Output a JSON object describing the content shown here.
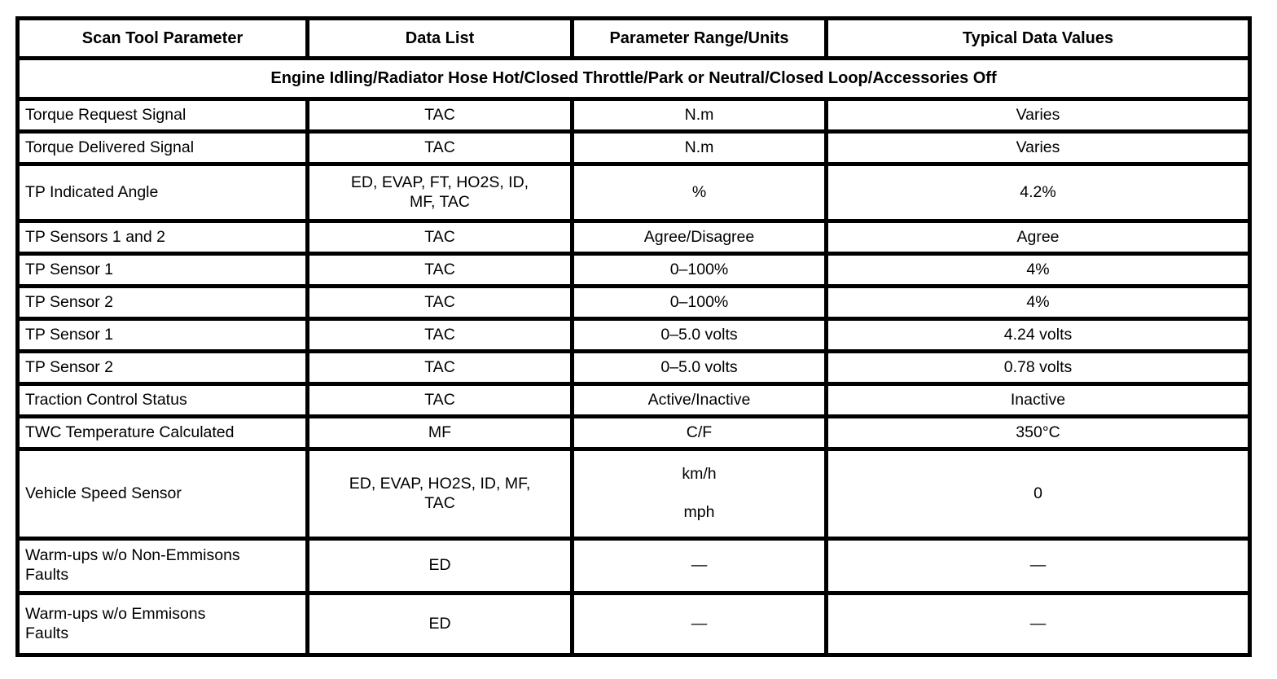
{
  "table": {
    "border_color": "#000000",
    "background_color": "#ffffff",
    "headers": [
      "Scan Tool Parameter",
      "Data List",
      "Parameter Range/Units",
      "Typical Data Values"
    ],
    "banner": "Engine Idling/Radiator Hose Hot/Closed Throttle/Park or Neutral/Closed Loop/Accessories Off",
    "rows": [
      [
        "Torque Request Signal",
        "TAC",
        "N.m",
        "Varies"
      ],
      [
        "Torque Delivered Signal",
        "TAC",
        "N.m",
        "Varies"
      ],
      [
        "TP Indicated Angle",
        "ED, EVAP, FT, HO2S, ID,\nMF, TAC",
        "%",
        "4.2%"
      ],
      [
        "TP Sensors 1 and 2",
        "TAC",
        "Agree/Disagree",
        "Agree"
      ],
      [
        "TP Sensor 1",
        "TAC",
        "0–100%",
        "4%"
      ],
      [
        "TP Sensor 2",
        "TAC",
        "0–100%",
        "4%"
      ],
      [
        "TP Sensor 1",
        "TAC",
        "0–5.0 volts",
        "4.24 volts"
      ],
      [
        "TP Sensor 2",
        "TAC",
        "0–5.0 volts",
        "0.78 volts"
      ],
      [
        "Traction Control Status",
        "TAC",
        "Active/Inactive",
        "Inactive"
      ],
      [
        "TWC Temperature Calculated",
        "MF",
        "C/F",
        "350°C"
      ],
      [
        "Vehicle Speed Sensor",
        "ED, EVAP, HO2S, ID, MF,\nTAC",
        "km/h\n\nmph",
        "0"
      ],
      [
        "Warm-ups w/o Non-Emmisons\nFaults",
        "ED",
        "—",
        "—"
      ],
      [
        "Warm-ups w/o Emmisons\nFaults",
        "ED",
        "—",
        "—"
      ]
    ]
  }
}
